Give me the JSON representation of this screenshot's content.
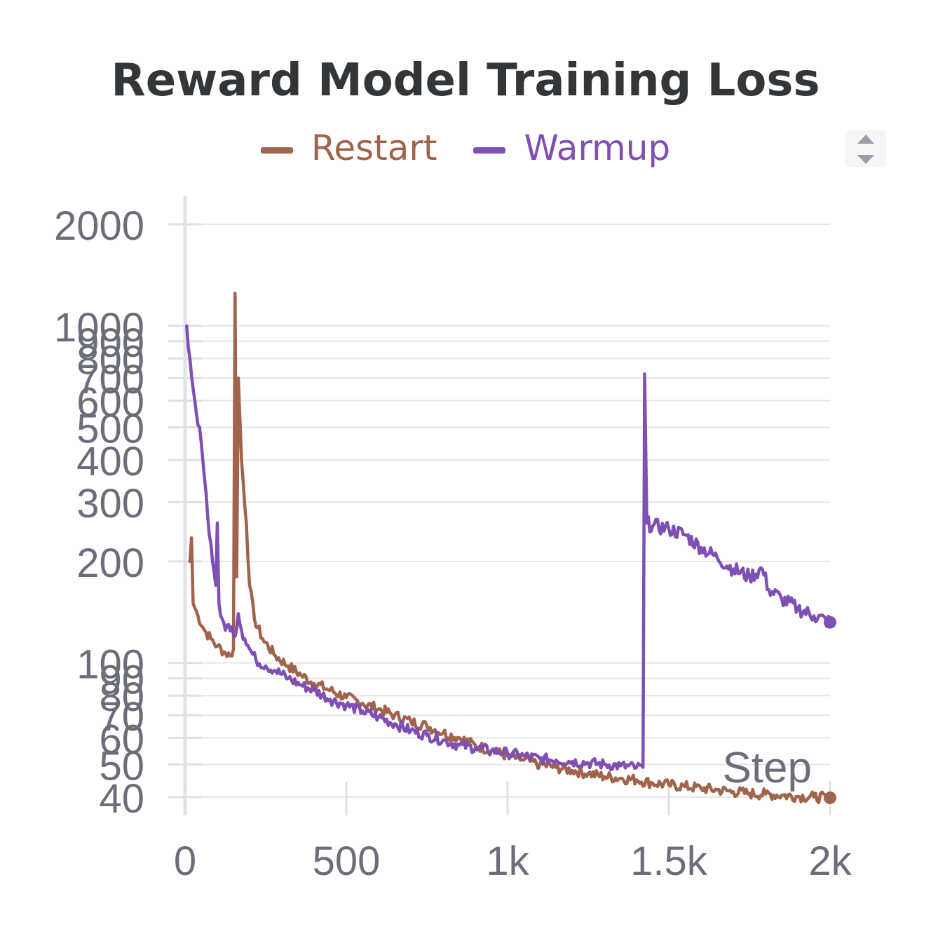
{
  "chart_data": {
    "type": "line",
    "title": "Reward Model Training Loss",
    "xlabel": "Step",
    "ylabel": "",
    "yscale": "log",
    "xlim": [
      0,
      2000
    ],
    "ylim": [
      40,
      2000
    ],
    "x_ticks": [
      0,
      500,
      1000,
      1500,
      2000
    ],
    "x_tick_labels": [
      "0",
      "500",
      "1k",
      "1.5k",
      "2k"
    ],
    "y_ticks": [
      40,
      50,
      60,
      70,
      80,
      90,
      100,
      200,
      300,
      400,
      500,
      600,
      700,
      800,
      900,
      1000,
      2000
    ],
    "y_tick_labels": [
      "40",
      "50",
      "60",
      "70",
      "80",
      "90",
      "100",
      "200",
      "300",
      "400",
      "500",
      "600",
      "700",
      "800",
      "900",
      "1000",
      "2000"
    ],
    "legend_position": "top-center",
    "series": [
      {
        "name": "Restart",
        "color": "#a0634b",
        "points": [
          [
            15,
            200
          ],
          [
            20,
            235
          ],
          [
            25,
            150
          ],
          [
            40,
            138
          ],
          [
            60,
            125
          ],
          [
            80,
            118
          ],
          [
            100,
            112
          ],
          [
            120,
            108
          ],
          [
            140,
            105
          ],
          [
            150,
            110
          ],
          [
            155,
            1250
          ],
          [
            160,
            180
          ],
          [
            165,
            700
          ],
          [
            175,
            400
          ],
          [
            190,
            260
          ],
          [
            200,
            170
          ],
          [
            215,
            135
          ],
          [
            240,
            118
          ],
          [
            280,
            105
          ],
          [
            320,
            98
          ],
          [
            360,
            92
          ],
          [
            400,
            87
          ],
          [
            450,
            83
          ],
          [
            500,
            79
          ],
          [
            550,
            76
          ],
          [
            600,
            73
          ],
          [
            650,
            70
          ],
          [
            700,
            67
          ],
          [
            750,
            65
          ],
          [
            800,
            62
          ],
          [
            850,
            60
          ],
          [
            900,
            57
          ],
          [
            950,
            55
          ],
          [
            1000,
            53
          ],
          [
            1050,
            51.5
          ],
          [
            1100,
            50
          ],
          [
            1150,
            49
          ],
          [
            1200,
            48
          ],
          [
            1250,
            47
          ],
          [
            1300,
            46
          ],
          [
            1350,
            45.5
          ],
          [
            1400,
            45
          ],
          [
            1450,
            44
          ],
          [
            1500,
            43.5
          ],
          [
            1550,
            43
          ],
          [
            1600,
            42.5
          ],
          [
            1650,
            42
          ],
          [
            1700,
            41.5
          ],
          [
            1750,
            41
          ],
          [
            1800,
            40.8
          ],
          [
            1850,
            40.5
          ],
          [
            1900,
            40.2
          ],
          [
            1950,
            40
          ],
          [
            2000,
            39.8
          ]
        ]
      },
      {
        "name": "Warmup",
        "color": "#7f4fb3",
        "points": [
          [
            5,
            1000
          ],
          [
            15,
            800
          ],
          [
            25,
            650
          ],
          [
            35,
            550
          ],
          [
            45,
            500
          ],
          [
            55,
            400
          ],
          [
            65,
            320
          ],
          [
            75,
            240
          ],
          [
            85,
            200
          ],
          [
            95,
            170
          ],
          [
            100,
            260
          ],
          [
            105,
            150
          ],
          [
            115,
            135
          ],
          [
            125,
            125
          ],
          [
            135,
            130
          ],
          [
            145,
            128
          ],
          [
            155,
            120
          ],
          [
            165,
            140
          ],
          [
            175,
            125
          ],
          [
            185,
            118
          ],
          [
            200,
            110
          ],
          [
            220,
            102
          ],
          [
            250,
            98
          ],
          [
            280,
            95
          ],
          [
            320,
            90
          ],
          [
            360,
            86
          ],
          [
            400,
            83
          ],
          [
            450,
            78
          ],
          [
            500,
            75
          ],
          [
            550,
            72
          ],
          [
            600,
            69
          ],
          [
            650,
            66
          ],
          [
            700,
            63
          ],
          [
            750,
            61
          ],
          [
            800,
            59
          ],
          [
            850,
            57
          ],
          [
            900,
            56
          ],
          [
            950,
            55
          ],
          [
            1000,
            54
          ],
          [
            1050,
            53
          ],
          [
            1100,
            52
          ],
          [
            1150,
            51.5
          ],
          [
            1200,
            51
          ],
          [
            1250,
            50.5
          ],
          [
            1300,
            50
          ],
          [
            1350,
            49.5
          ],
          [
            1400,
            49
          ],
          [
            1420,
            49
          ],
          [
            1425,
            720
          ],
          [
            1432,
            260
          ],
          [
            1450,
            255
          ],
          [
            1500,
            250
          ],
          [
            1550,
            240
          ],
          [
            1600,
            220
          ],
          [
            1650,
            205
          ],
          [
            1700,
            190
          ],
          [
            1750,
            180
          ],
          [
            1790,
            190
          ],
          [
            1810,
            165
          ],
          [
            1850,
            155
          ],
          [
            1900,
            145
          ],
          [
            1950,
            138
          ],
          [
            2000,
            132
          ]
        ]
      }
    ]
  },
  "ui": {
    "scroll_up_icon": "triangle-up-icon",
    "scroll_down_icon": "triangle-down-icon"
  }
}
